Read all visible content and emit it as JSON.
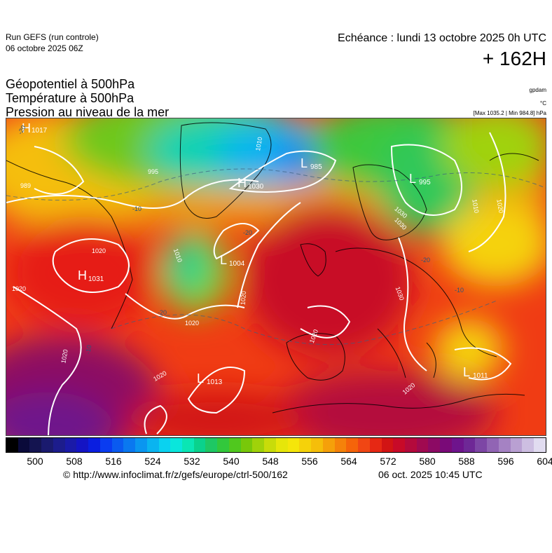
{
  "header": {
    "run_title": "Run GEFS (run controle)",
    "run_date": "06 octobre 2025 06Z",
    "echeance": "Echéance : lundi 13 octobre 2025 0h UTC",
    "lead_time": "+ 162H"
  },
  "parameters": [
    "Géopotentiel à 500hPa",
    "Température à 500hPa",
    "Pression au niveau de la mer"
  ],
  "units": {
    "geopotential": "gpdam",
    "temperature": "°C",
    "pressure": "[Max 1035.2 | Min 984.8] hPa"
  },
  "map": {
    "region": "Europe / North Atlantic",
    "pressure_centers": [
      {
        "type": "H",
        "value": "1017"
      },
      {
        "type": "H",
        "value": "1030"
      },
      {
        "type": "L",
        "value": "985"
      },
      {
        "type": "L",
        "value": "995"
      },
      {
        "type": "H",
        "value": "1031"
      },
      {
        "type": "L",
        "value": "1004"
      },
      {
        "type": "L",
        "value": "1013"
      },
      {
        "type": "L",
        "value": "1011"
      }
    ],
    "isobar_labels": [
      "989",
      "995",
      "1010",
      "1020",
      "1030",
      "1010",
      "1020",
      "1020",
      "1020",
      "1020",
      "1020",
      "1020",
      "1030",
      "1020",
      "1010",
      "1020",
      "1030"
    ],
    "temperature_labels": [
      "-20",
      "-10",
      "-20",
      "-20",
      "-10",
      "-20",
      "-10"
    ]
  },
  "colorbar": {
    "colors": [
      "#000000",
      "#0a0a3a",
      "#141450",
      "#1a1a6e",
      "#1c1c8c",
      "#1a1aa8",
      "#1414c4",
      "#0a1ee0",
      "#0a3cf0",
      "#0a5af0",
      "#0a78f0",
      "#0a96f0",
      "#0ab4f0",
      "#0ad2f0",
      "#0ae6dc",
      "#0ae6b4",
      "#0ad28c",
      "#1ec864",
      "#32c83c",
      "#50c81e",
      "#78c80a",
      "#a0d20a",
      "#c8dc0a",
      "#e6e60a",
      "#f5e60a",
      "#f5d20a",
      "#f5be0a",
      "#f5a00a",
      "#f5820a",
      "#f5640a",
      "#f04614",
      "#e62814",
      "#d21414",
      "#c80a28",
      "#b40a3c",
      "#a00a50",
      "#8c0a64",
      "#7a0a78",
      "#6e148c",
      "#6e2896",
      "#7d46a5",
      "#9164b4",
      "#a582c3",
      "#b9a0d2",
      "#cdbee1",
      "#e1dcf0"
    ],
    "ticks": [
      "500",
      "508",
      "516",
      "524",
      "532",
      "540",
      "548",
      "556",
      "564",
      "572",
      "580",
      "588",
      "596",
      "604"
    ]
  },
  "footer": {
    "link": "© http://www.infoclimat.fr/z/gefs/europe/ctrl-500/162",
    "date": "06 oct. 2025 10:45 UTC"
  }
}
